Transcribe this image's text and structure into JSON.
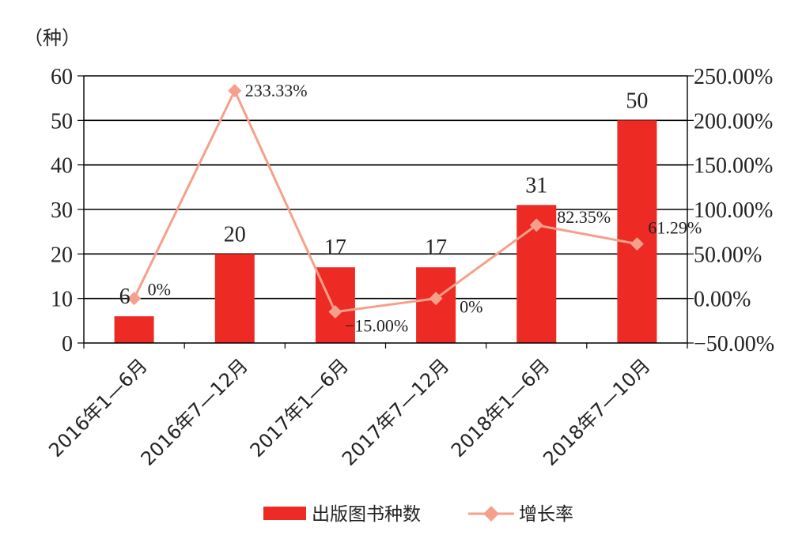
{
  "chart_data": {
    "type": "bar",
    "unit_label": "（种）",
    "categories": [
      "2016年1—6月",
      "2016年7—12月",
      "2017年1—6月",
      "2017年7—12月",
      "2018年1—6月",
      "2018年7—10月"
    ],
    "left_axis": {
      "min": 0,
      "max": 60,
      "ticks": [
        "0",
        "10",
        "20",
        "30",
        "40",
        "50",
        "60"
      ]
    },
    "right_axis": {
      "min": -50,
      "max": 250,
      "ticks": [
        "−50.00%",
        "0.00%",
        "50.00%",
        "100.00%",
        "150.00%",
        "200.00%",
        "250.00%"
      ]
    },
    "series": [
      {
        "name": "出版图书种数",
        "type": "bar",
        "color": "#ee2a24",
        "values": [
          6,
          20,
          17,
          17,
          31,
          50
        ],
        "labels": [
          "6",
          "20",
          "17",
          "17",
          "31",
          "50"
        ]
      },
      {
        "name": "增长率",
        "type": "line",
        "color": "#f5a08a",
        "values": [
          0,
          233.33,
          -15,
          0,
          82.35,
          61.29
        ],
        "labels": [
          "0%",
          "233.33%",
          "−15.00%",
          "0%",
          "82.35%",
          "61.29%"
        ]
      }
    ],
    "grid": true,
    "legend_position": "bottom"
  }
}
